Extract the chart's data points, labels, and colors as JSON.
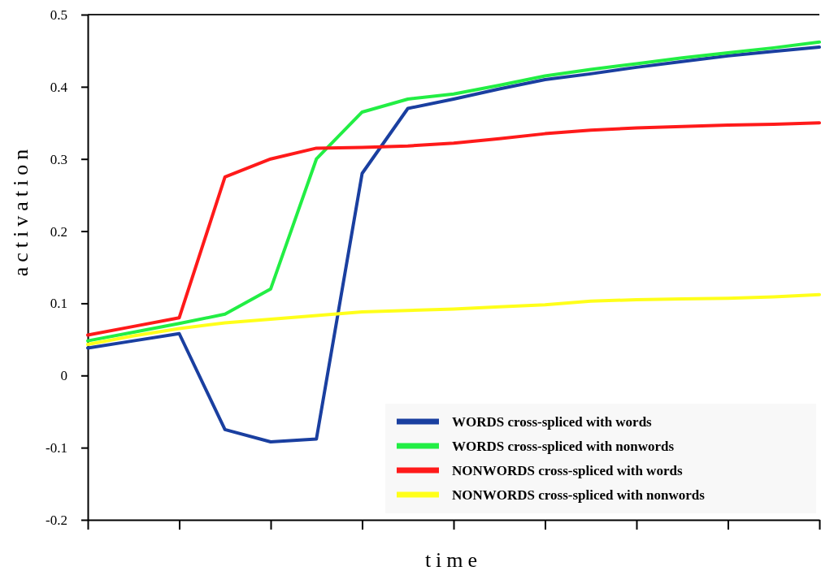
{
  "chart_data": {
    "type": "line",
    "xlabel": "time",
    "ylabel": "activation",
    "categories": [
      null,
      null,
      null,
      null,
      null,
      null,
      null,
      null,
      null,
      null,
      null,
      null,
      null,
      null,
      null,
      null,
      null
    ],
    "ylim": [
      -0.2,
      0.5
    ],
    "yticks": [
      -0.2,
      -0.1,
      0,
      0.1,
      0.2,
      0.3,
      0.4,
      0.5
    ],
    "grid": false,
    "legend": "bottom right",
    "series": [
      {
        "name": "WORDS cross-spliced with words",
        "color": "#1a3fa0",
        "values": [
          0.038,
          0.048,
          0.058,
          -0.075,
          -0.092,
          -0.088,
          0.28,
          0.37,
          0.383,
          0.397,
          0.41,
          0.418,
          0.427,
          0.435,
          0.443,
          0.449,
          0.455
        ]
      },
      {
        "name": "WORDS cross-spliced with nonwords",
        "color": "#22ee44",
        "values": [
          0.048,
          0.06,
          0.072,
          0.085,
          0.12,
          0.3,
          0.365,
          0.383,
          0.39,
          0.402,
          0.415,
          0.424,
          0.432,
          0.44,
          0.447,
          0.454,
          0.462
        ]
      },
      {
        "name": "NONWORDS cross-spliced with words",
        "color": "#ff1a1a",
        "values": [
          0.056,
          0.068,
          0.08,
          0.275,
          0.3,
          0.315,
          0.316,
          0.318,
          0.322,
          0.328,
          0.335,
          0.34,
          0.343,
          0.345,
          0.347,
          0.348,
          0.35
        ]
      },
      {
        "name": "NONWORDS cross-spliced with nonwords",
        "color": "#ffff1a",
        "values": [
          0.043,
          0.055,
          0.065,
          0.073,
          0.078,
          0.083,
          0.088,
          0.09,
          0.092,
          0.095,
          0.098,
          0.103,
          0.105,
          0.106,
          0.107,
          0.109,
          0.112
        ]
      }
    ]
  }
}
